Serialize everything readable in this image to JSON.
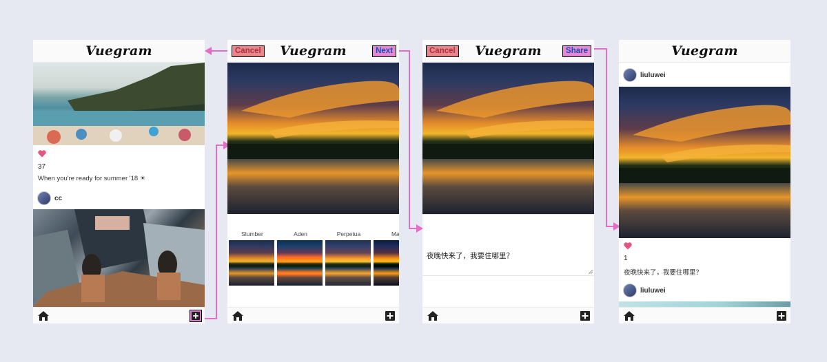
{
  "app_title": "Vuegram",
  "screen1": {
    "post1": {
      "likes": "37",
      "caption": "When you're ready for summer '18 ☀"
    },
    "post2": {
      "username": "cc"
    }
  },
  "screen2": {
    "cancel_label": "Cancel",
    "next_label": "Next",
    "filters": [
      "Slumber",
      "Aden",
      "Perpetua",
      "May"
    ]
  },
  "screen3": {
    "cancel_label": "Cancel",
    "share_label": "Share",
    "caption_text": "夜晚快来了，我要住哪里？"
  },
  "screen4": {
    "post1": {
      "username": "liuluwei",
      "likes": "1",
      "caption": "夜晚快来了，我要住哪里？"
    },
    "post2": {
      "username": "liuluwei"
    }
  },
  "icons": {
    "home": "home-icon",
    "add": "plus-square-icon",
    "like": "heart-icon"
  },
  "colors": {
    "heart": "#e5557f",
    "highlight": "#e58ad2",
    "cancel": "#e8868e",
    "background": "#e6e9f2"
  }
}
